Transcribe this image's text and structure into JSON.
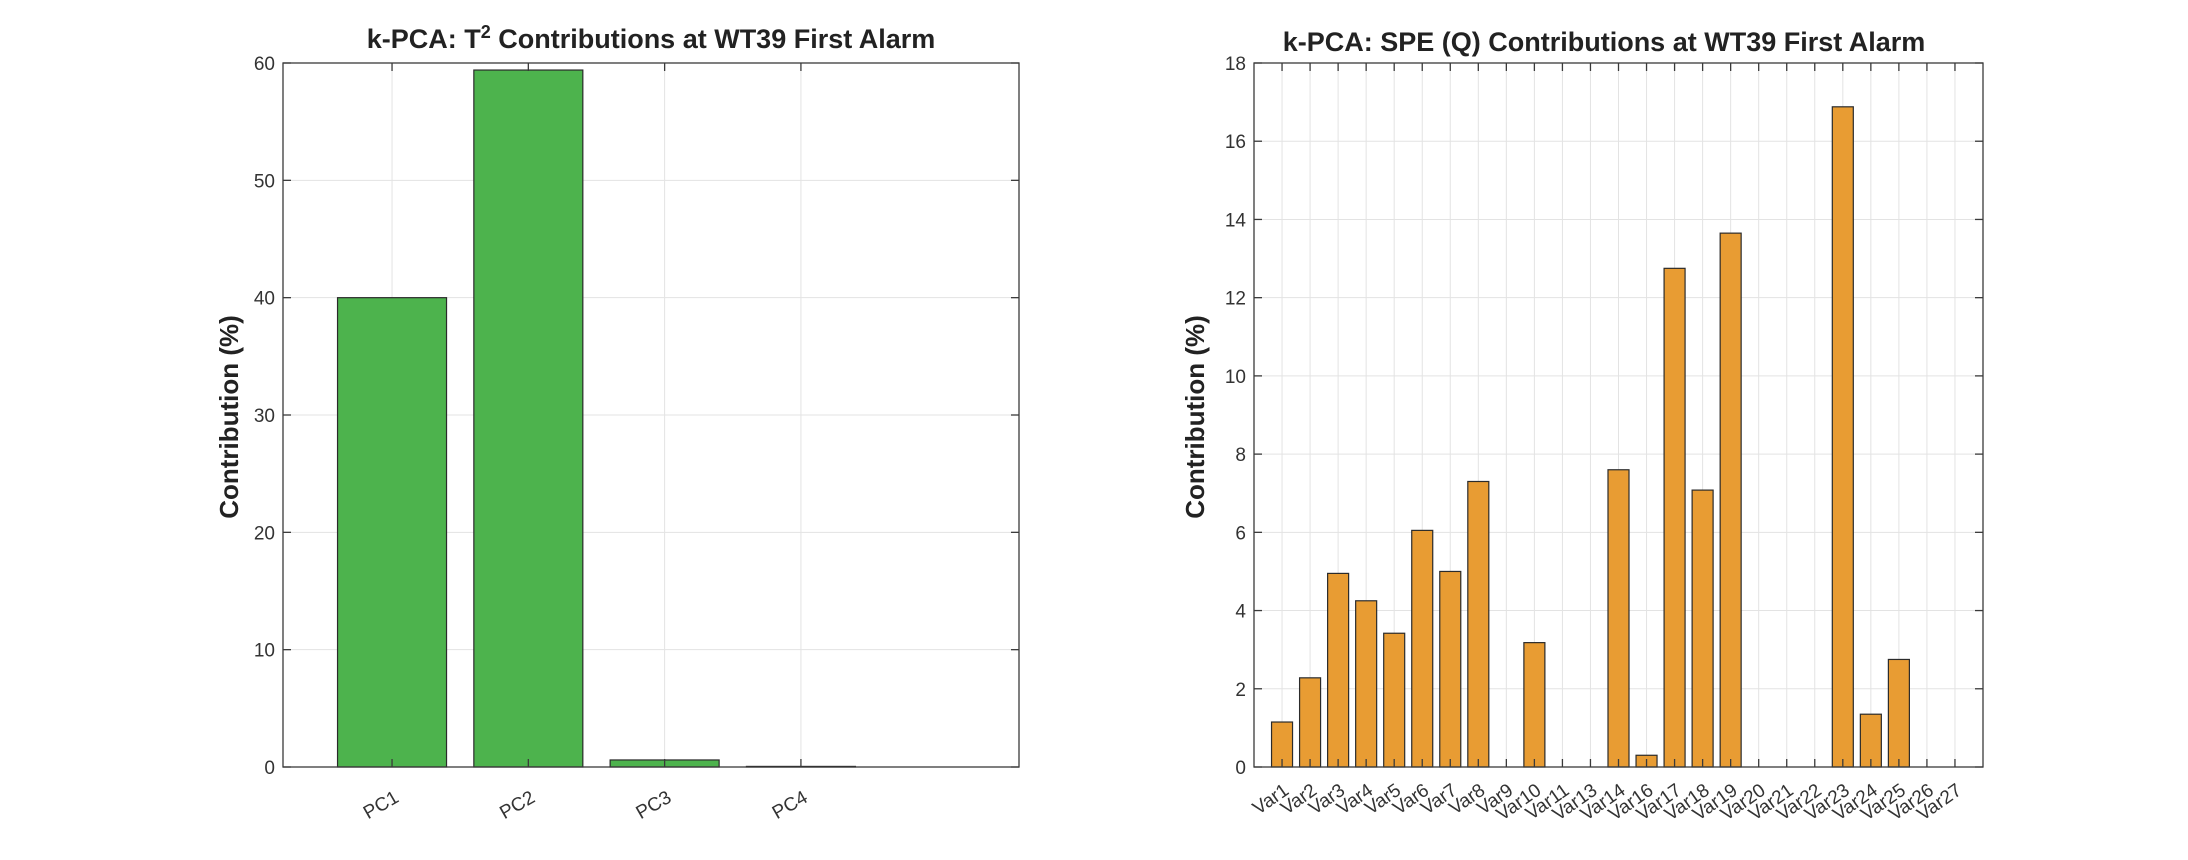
{
  "chart_data": [
    {
      "type": "bar",
      "title_parts": [
        "k-PCA:  T",
        "2",
        "  Contributions  at  WT39  First  Alarm"
      ],
      "xlabel": "",
      "ylabel": "Contribution (%)",
      "categories": [
        "PC1",
        "PC2",
        "PC3",
        "PC4"
      ],
      "values": [
        40.0,
        59.4,
        0.6,
        0.05
      ],
      "ylim": [
        0,
        60
      ],
      "yticks": [
        "0",
        "10",
        "20",
        "30",
        "40",
        "50",
        "60"
      ],
      "bar_color": "#4db34d",
      "grid": true
    },
    {
      "type": "bar",
      "title": "k-PCA: SPE (Q) Contributions at WT39 First Alarm",
      "xlabel": "",
      "ylabel": "Contribution (%)",
      "categories": [
        "Var1",
        "Var2",
        "Var3",
        "Var4",
        "Var5",
        "Var6",
        "Var7",
        "Var8",
        "Var9",
        "Var10",
        "Var11",
        "Var13",
        "Var14",
        "Var16",
        "Var17",
        "Var18",
        "Var19",
        "Var20",
        "Var21",
        "Var22",
        "Var23",
        "Var24",
        "Var25",
        "Var26",
        "Var27"
      ],
      "values": [
        1.15,
        2.28,
        4.95,
        4.25,
        3.42,
        6.05,
        5.0,
        7.3,
        0,
        3.18,
        0,
        0,
        7.6,
        0.3,
        12.75,
        7.08,
        13.65,
        0,
        0,
        0,
        16.88,
        1.35,
        2.75,
        0,
        0
      ],
      "ylim": [
        0,
        18
      ],
      "yticks": [
        "0",
        "2",
        "4",
        "6",
        "8",
        "10",
        "12",
        "14",
        "16",
        "18"
      ],
      "bar_color": "#e89c33",
      "grid": true
    }
  ]
}
